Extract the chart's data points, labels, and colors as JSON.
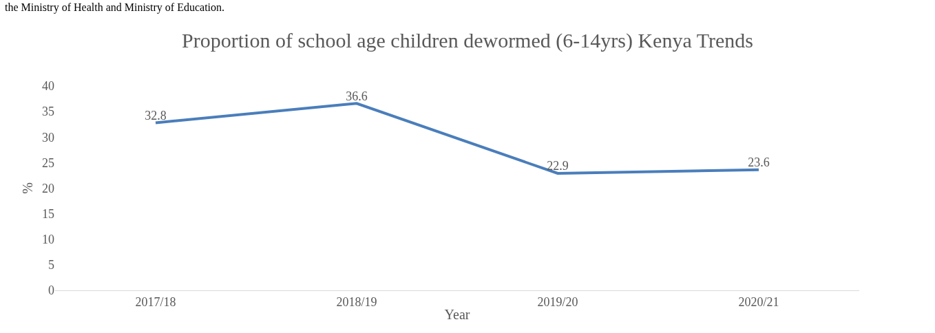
{
  "chart_data": {
    "type": "line",
    "title": "Proportion of school age children dewormed (6-14yrs) Kenya Trends",
    "xlabel": "Year",
    "ylabel": "%",
    "annotations": [
      "the Ministry of Health and Ministry of Education."
    ],
    "categories": [
      "2017/18",
      "2018/19",
      "2019/20",
      "2020/21"
    ],
    "series": [
      {
        "color": "#4a7ebb",
        "values": [
          32.8,
          36.6,
          22.9,
          23.6
        ]
      }
    ],
    "ylim": [
      0,
      40
    ],
    "yticks": [
      0,
      5,
      10,
      15,
      20,
      25,
      30,
      35,
      40
    ],
    "grid": false,
    "marker": "none",
    "line_style": "solid",
    "data_labels": true
  }
}
